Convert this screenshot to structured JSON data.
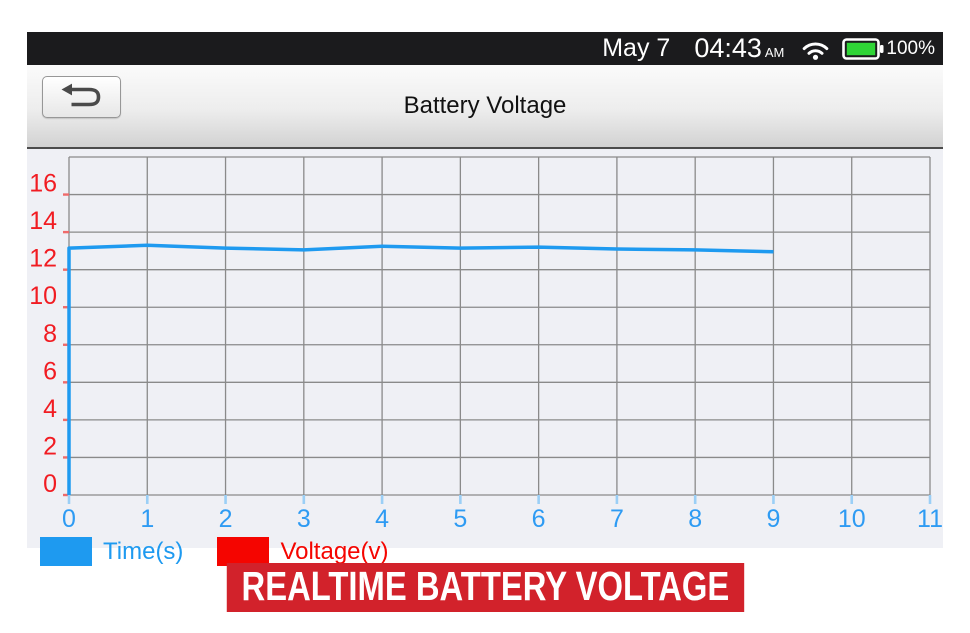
{
  "status_bar": {
    "date": "May 7",
    "time": "04:43",
    "meridiem": "AM",
    "battery_percent": "100%",
    "battery_color": "#2fd436",
    "wifi_icon": "wifi-icon",
    "battery_icon": "battery-icon"
  },
  "title_bar": {
    "title": "Battery Voltage",
    "back_button": "back"
  },
  "chart_data": {
    "type": "line",
    "title": "Battery Voltage",
    "x": [
      0,
      1,
      2,
      3,
      4,
      5,
      6,
      7,
      8,
      9
    ],
    "series": [
      {
        "name": "Voltage(v)",
        "color": "#1e9af0",
        "values": [
          13.15,
          13.3,
          13.15,
          13.05,
          13.25,
          13.15,
          13.2,
          13.1,
          13.05,
          12.95
        ]
      }
    ],
    "prepend_origin": true,
    "xlabel": "Time(s)",
    "ylabel": "Voltage(v)",
    "xlim": [
      0,
      11
    ],
    "ylim": [
      0,
      18
    ],
    "x_ticks": [
      0,
      1,
      2,
      3,
      4,
      5,
      6,
      7,
      8,
      9,
      10,
      11
    ],
    "y_ticks": [
      0,
      2,
      4,
      6,
      8,
      10,
      12,
      14,
      16
    ],
    "grid": true,
    "grid_step_y": 2,
    "grid_color": "#8a8a8a",
    "plot_bg": "#eff0f5",
    "x_tick_label_color": "#2e9bf3",
    "y_tick_label_color": "#f11c22",
    "x_tick_mark_color": "#9bcff6",
    "y_tick_mark_color": "#ef6a6a",
    "legend_position": "bottom-left",
    "legend": [
      {
        "label": "Time(s)",
        "color": "#1e9af0"
      },
      {
        "label": "Voltage(v)",
        "color": "#f50500"
      }
    ]
  },
  "banner": {
    "text": "REALTIME BATTERY VOLTAGE",
    "bg": "#d2222b",
    "fg": "#ffffff"
  }
}
